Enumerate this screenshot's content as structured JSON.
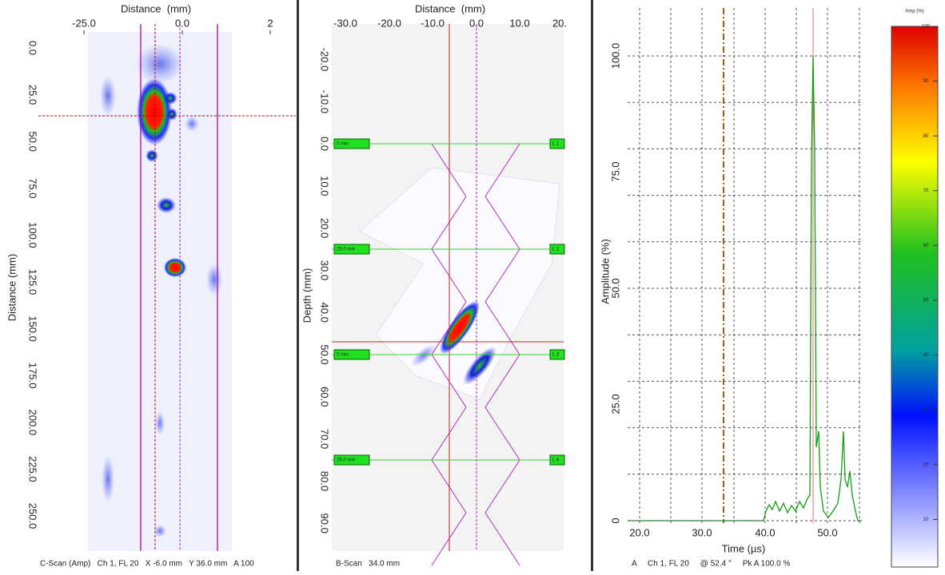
{
  "cscan": {
    "x_axis_title": "Distance  (mm)",
    "x_ticks": [
      "-25.0",
      "0.0",
      "2"
    ],
    "y_axis_title": "Distance  (mm)",
    "y_ticks": [
      "0.0",
      "25.0",
      "50.0",
      "75.0",
      "100.0",
      "125.0",
      "150.0",
      "175.0",
      "200.0",
      "225.0",
      "250.0"
    ],
    "status": "C-Scan (Amp)   Ch 1, FL 20   X -6.0 mm   Y 36.0 mm   A 100"
  },
  "bscan": {
    "x_axis_title": "Distance  (mm)",
    "x_ticks": [
      "-30.0",
      "-20.0",
      "-10.0",
      "0.0",
      "10.0",
      "20."
    ],
    "y_axis_title": "Depth (mm)",
    "y_ticks": [
      "-20.0",
      "-10.0",
      "0.0",
      "10.0",
      "20.0",
      "30.0",
      "40.0",
      "50.0",
      "60.0",
      "70.0",
      "80.0",
      "90.0"
    ],
    "layer_labels_left": [
      "0 mm",
      "25.0 mm",
      "0 mm",
      "25.0 mm"
    ],
    "layer_labels_right": [
      "L 1",
      "L 2",
      "L 3",
      "L 4"
    ],
    "status": "B-Scan   34.0 mm"
  },
  "ascan": {
    "x_axis_title": "Time (µs)",
    "x_ticks": [
      "20.0",
      "30.0",
      "40.0",
      "50.0"
    ],
    "y_axis_title": "Amplitude (%)",
    "y_ticks": [
      "100.0",
      "75.0",
      "50.0",
      "25.0",
      "0"
    ],
    "status": "A     Ch 1, FL 20     @ 52.4 °     Pk A 100.0 %"
  },
  "colorbar": {
    "title": "Amp (%)",
    "ticks": [
      "100",
      "90",
      "80",
      "70",
      "60",
      "50",
      "40",
      "30",
      "20",
      "10"
    ]
  }
}
